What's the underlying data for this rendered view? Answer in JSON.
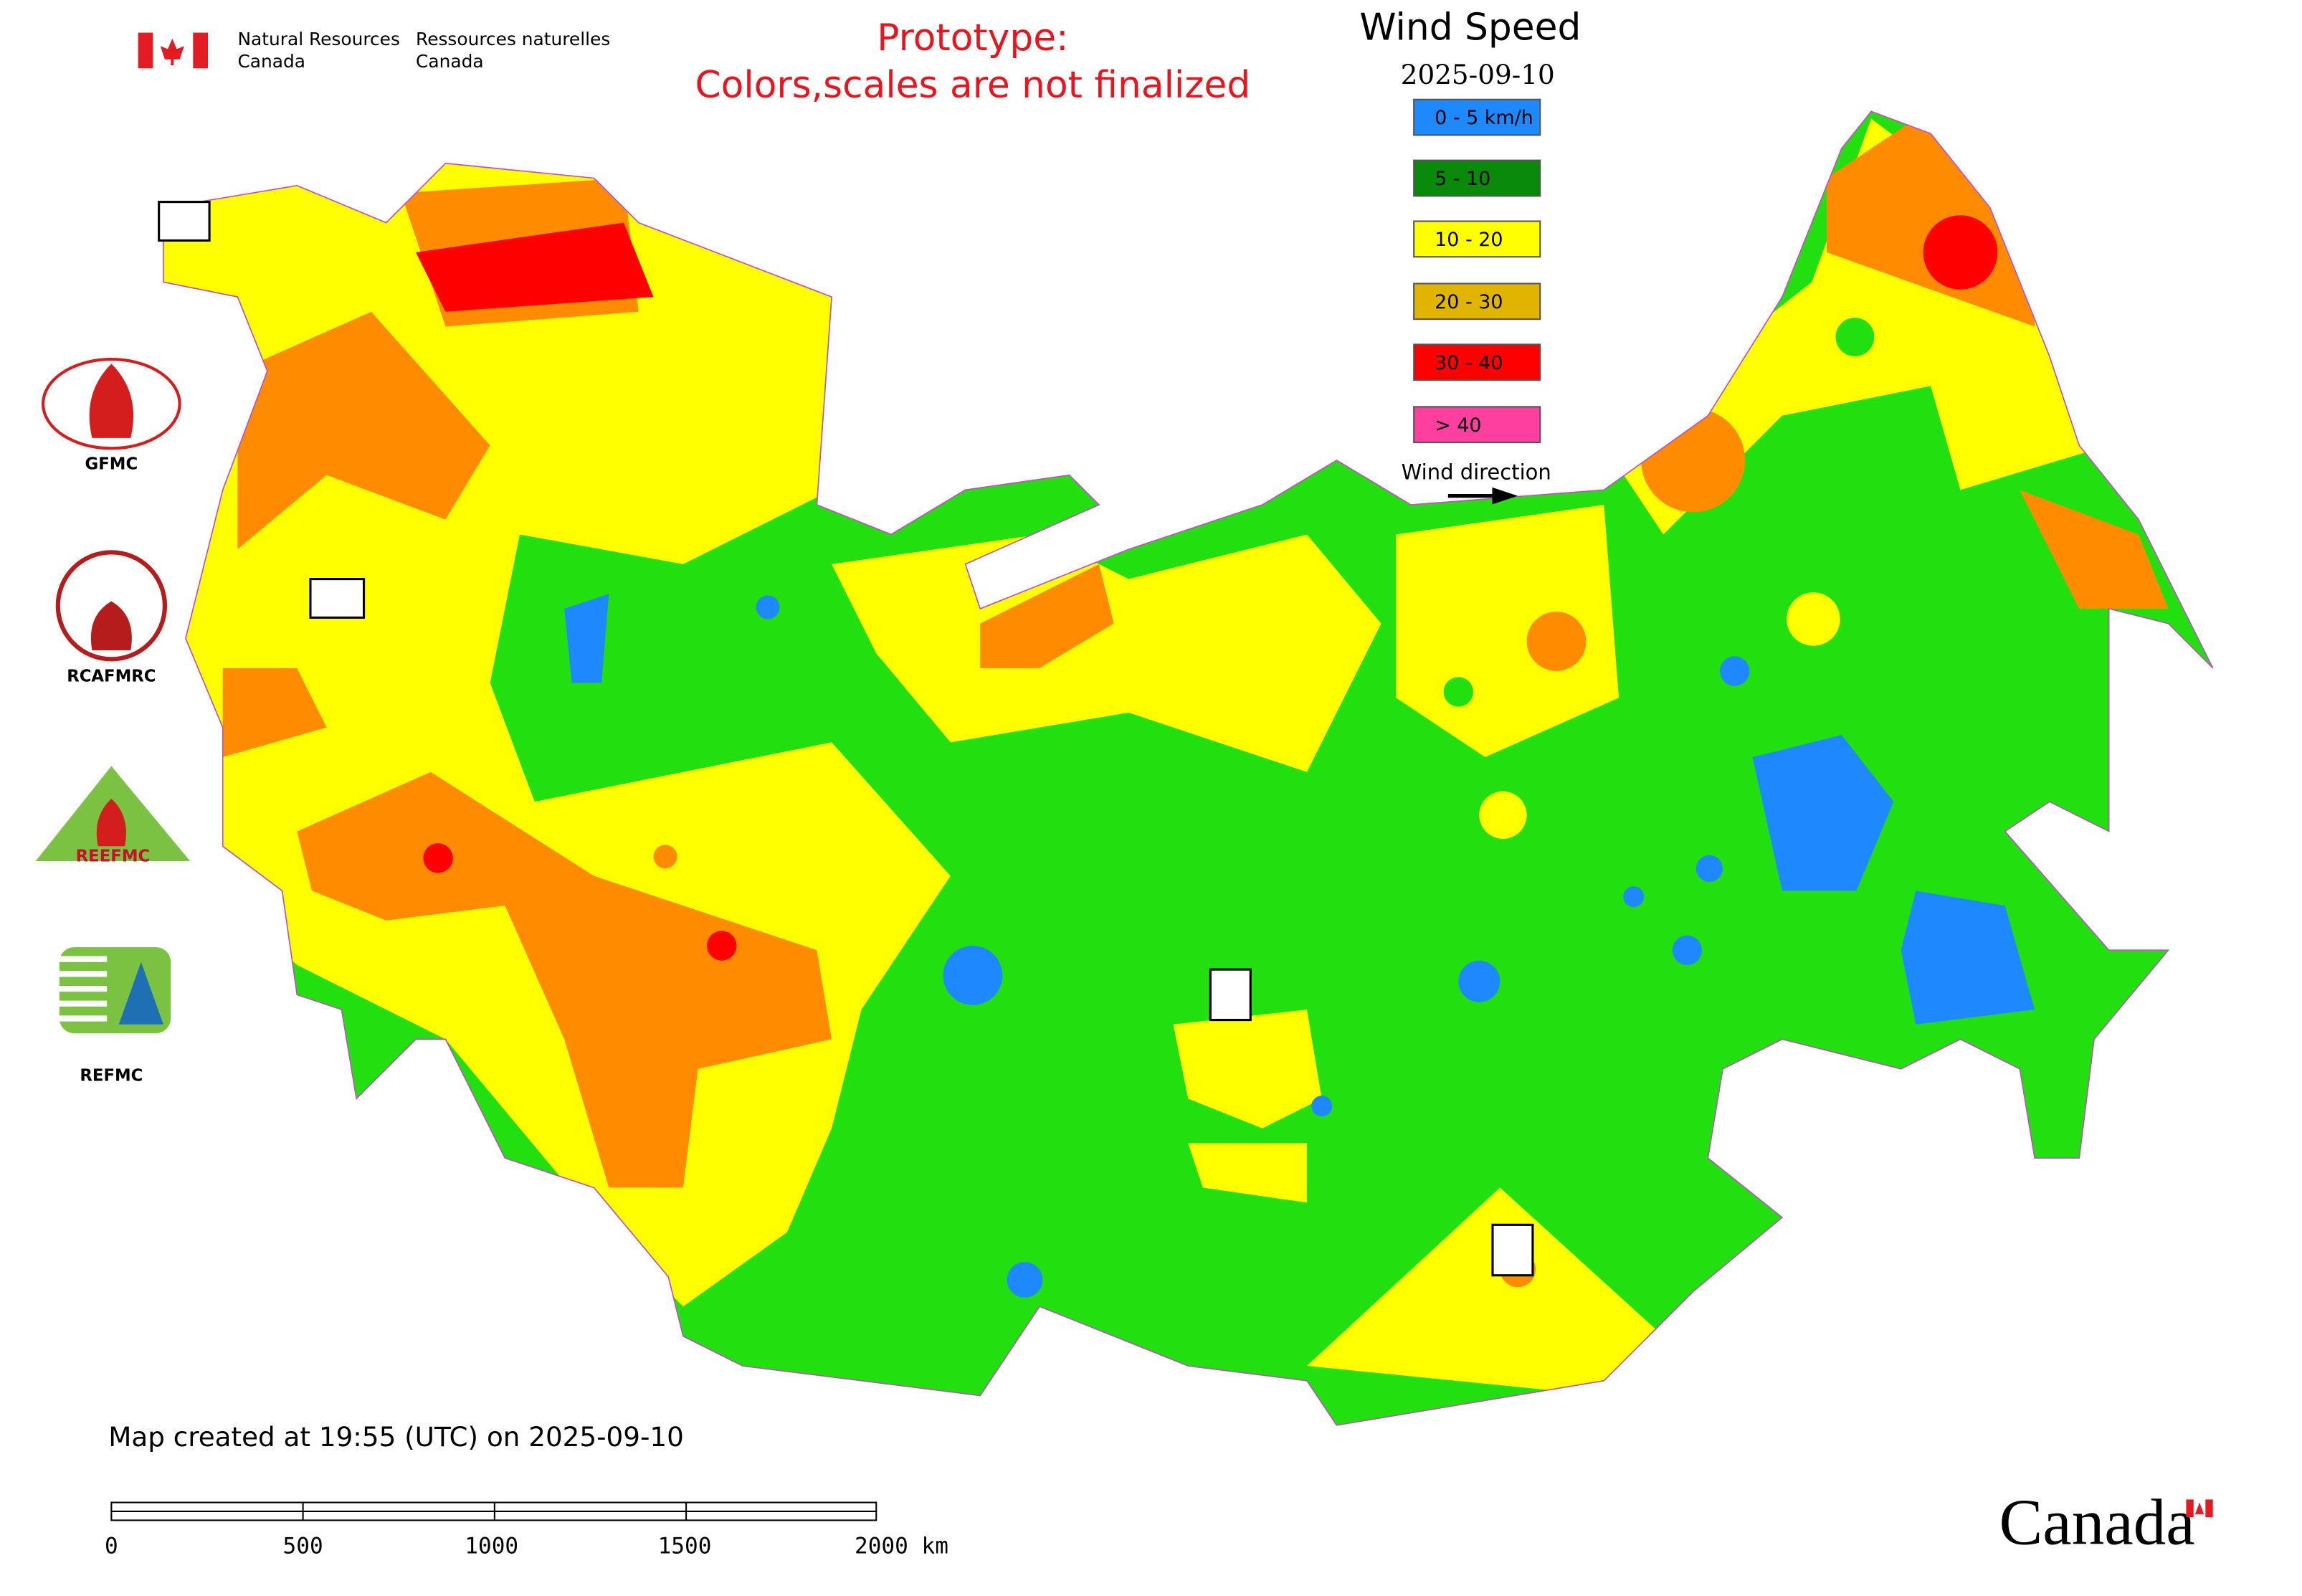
{
  "header": {
    "dept_en": "Natural Resources",
    "country_en": "Canada",
    "dept_fr": "Ressources naturelles",
    "country_fr": "Canada"
  },
  "notice": {
    "line1": "Prototype:",
    "line2": "Colors,scales are not finalized"
  },
  "legend": {
    "title": "Wind Speed",
    "date": "2025-09-10",
    "items": [
      "0 - 5 km/h",
      "5 - 10",
      "10 - 20",
      "20 - 30",
      "30 - 40",
      "> 40"
    ],
    "direction_label": "Wind direction"
  },
  "logos": {
    "gfmc": "GFMC",
    "rcafmrc": "RCAFMRC",
    "reefmc_mark": "REEFMC",
    "refmc": "REFMC"
  },
  "footer": {
    "created": "Map created at 19:55 (UTC) on 2025-09-10",
    "scale_labels": [
      "0",
      "500",
      "1000",
      "1500",
      "2000 km"
    ],
    "wordmark": "Canada"
  }
}
